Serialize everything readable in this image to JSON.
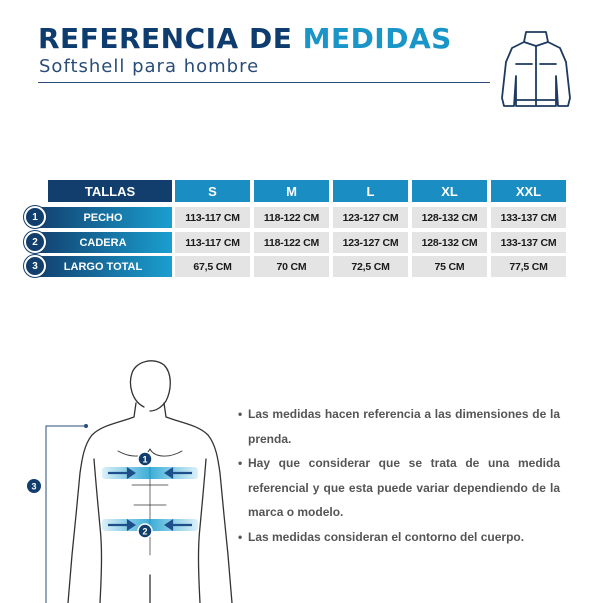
{
  "header": {
    "title_part1": "REFERENCIA DE",
    "title_part2": "MEDIDAS",
    "subtitle": "Softshell para hombre",
    "icon": "jacket-icon"
  },
  "table": {
    "corner_label": "TALLAS",
    "sizes": [
      "S",
      "M",
      "L",
      "XL",
      "XXL"
    ],
    "rows": [
      {
        "number": "1",
        "label": "PECHO",
        "values": [
          "113-117 CM",
          "118-122 CM",
          "123-127 CM",
          "128-132 CM",
          "133-137 CM"
        ]
      },
      {
        "number": "2",
        "label": "CADERA",
        "values": [
          "113-117 CM",
          "118-122 CM",
          "123-127 CM",
          "128-132 CM",
          "133-137 CM"
        ]
      },
      {
        "number": "3",
        "label": "LARGO TOTAL",
        "values": [
          "67,5 CM",
          "70 CM",
          "72,5 CM",
          "75 CM",
          "77,5 CM"
        ]
      }
    ]
  },
  "figure": {
    "markers": [
      "1",
      "2",
      "3"
    ],
    "icon": "body-outline-icon"
  },
  "notes": [
    "Las medidas hacen referencia a las dimensiones de la prenda.",
    "Hay que considerar que se trata de una medida referencial y que esta puede variar dependiendo de la marca o modelo.",
    "Las medidas consideran el contorno del cuerpo."
  ],
  "colors": {
    "navy": "#123e6d",
    "accent": "#1a95c7",
    "row_gradient_start": "#123e6d",
    "row_gradient_end": "#1a9fd0",
    "value_bg": "#e4e4e4"
  }
}
